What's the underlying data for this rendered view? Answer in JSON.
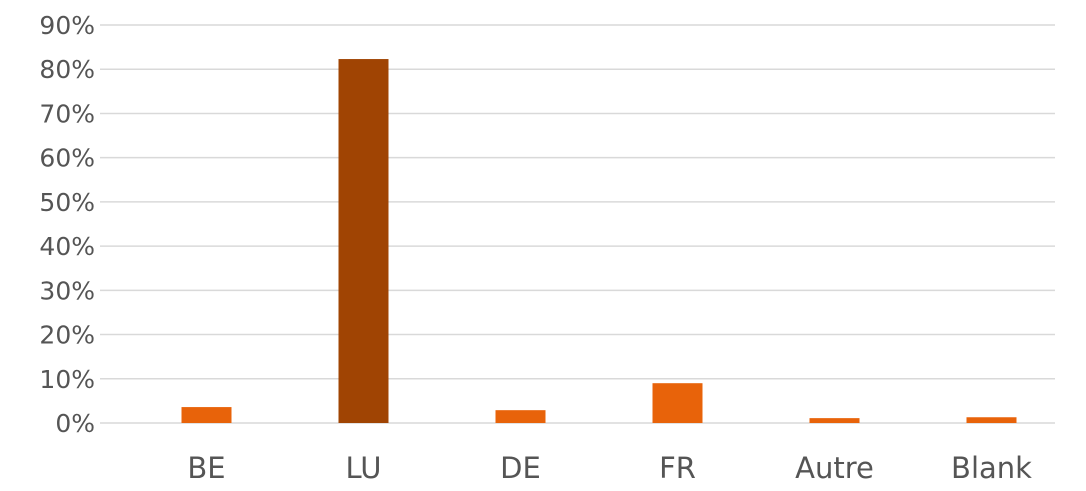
{
  "chart_data": {
    "type": "bar",
    "categories": [
      "BE",
      "LU",
      "DE",
      "FR",
      "Autre",
      "Blank"
    ],
    "values": [
      3.6,
      82.3,
      2.9,
      9.0,
      1.1,
      1.3
    ],
    "colors": [
      "#e8630a",
      "#a04403",
      "#e8630a",
      "#e8630a",
      "#e8630a",
      "#e8630a"
    ],
    "ylim": [
      0,
      90
    ],
    "yticks": [
      {
        "value": 0,
        "label": "0%"
      },
      {
        "value": 10,
        "label": "10%"
      },
      {
        "value": 20,
        "label": "20%"
      },
      {
        "value": 30,
        "label": "30%"
      },
      {
        "value": 40,
        "label": "40%"
      },
      {
        "value": 50,
        "label": "50%"
      },
      {
        "value": 60,
        "label": "60%"
      },
      {
        "value": 70,
        "label": "70%"
      },
      {
        "value": 80,
        "label": "80%"
      },
      {
        "value": 90,
        "label": "90%"
      }
    ],
    "grid": true
  }
}
